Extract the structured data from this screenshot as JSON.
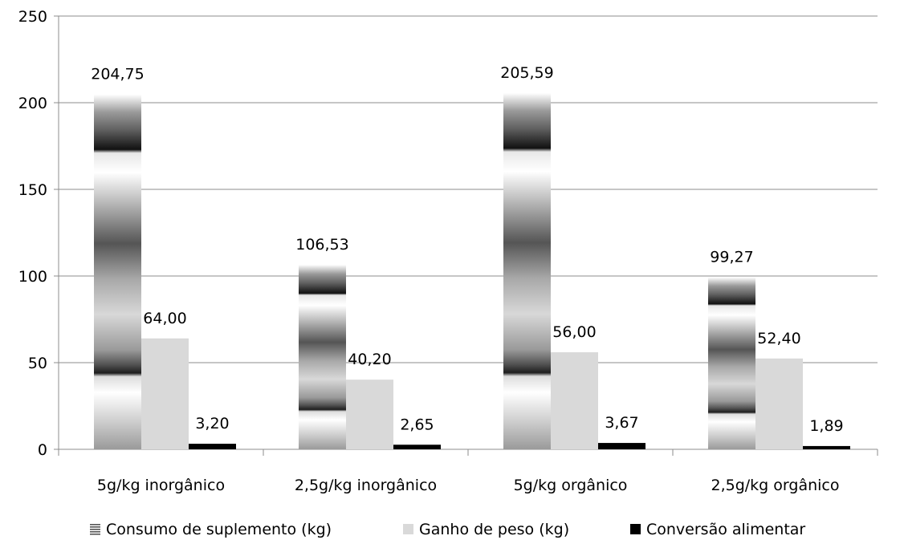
{
  "chart_data": {
    "type": "bar",
    "categories": [
      "5g/kg inorgânico",
      "2,5g/kg inorgânico",
      "5g/kg orgânico",
      "2,5g/kg orgânico"
    ],
    "series": [
      {
        "name": "Consumo de suplemento (kg)",
        "values": [
          204.75,
          106.53,
          205.59,
          99.27
        ],
        "labels": [
          "204,75",
          "106,53",
          "205,59",
          "99,27"
        ],
        "style": "gradient-gray"
      },
      {
        "name": "Ganho de peso (kg)",
        "values": [
          64.0,
          40.2,
          56.0,
          52.4
        ],
        "labels": [
          "64,00",
          "40,20",
          "56,00",
          "52,40"
        ],
        "color": "#d9d9d9"
      },
      {
        "name": "Conversão alimentar",
        "values": [
          3.2,
          2.65,
          3.67,
          1.89
        ],
        "labels": [
          "3,20",
          "2,65",
          "3,67",
          "1,89"
        ],
        "color": "#000000"
      }
    ],
    "yticks": [
      "0",
      "50",
      "100",
      "150",
      "200",
      "250"
    ],
    "ylim": [
      0,
      250
    ],
    "grid": true,
    "legend_position": "bottom"
  }
}
